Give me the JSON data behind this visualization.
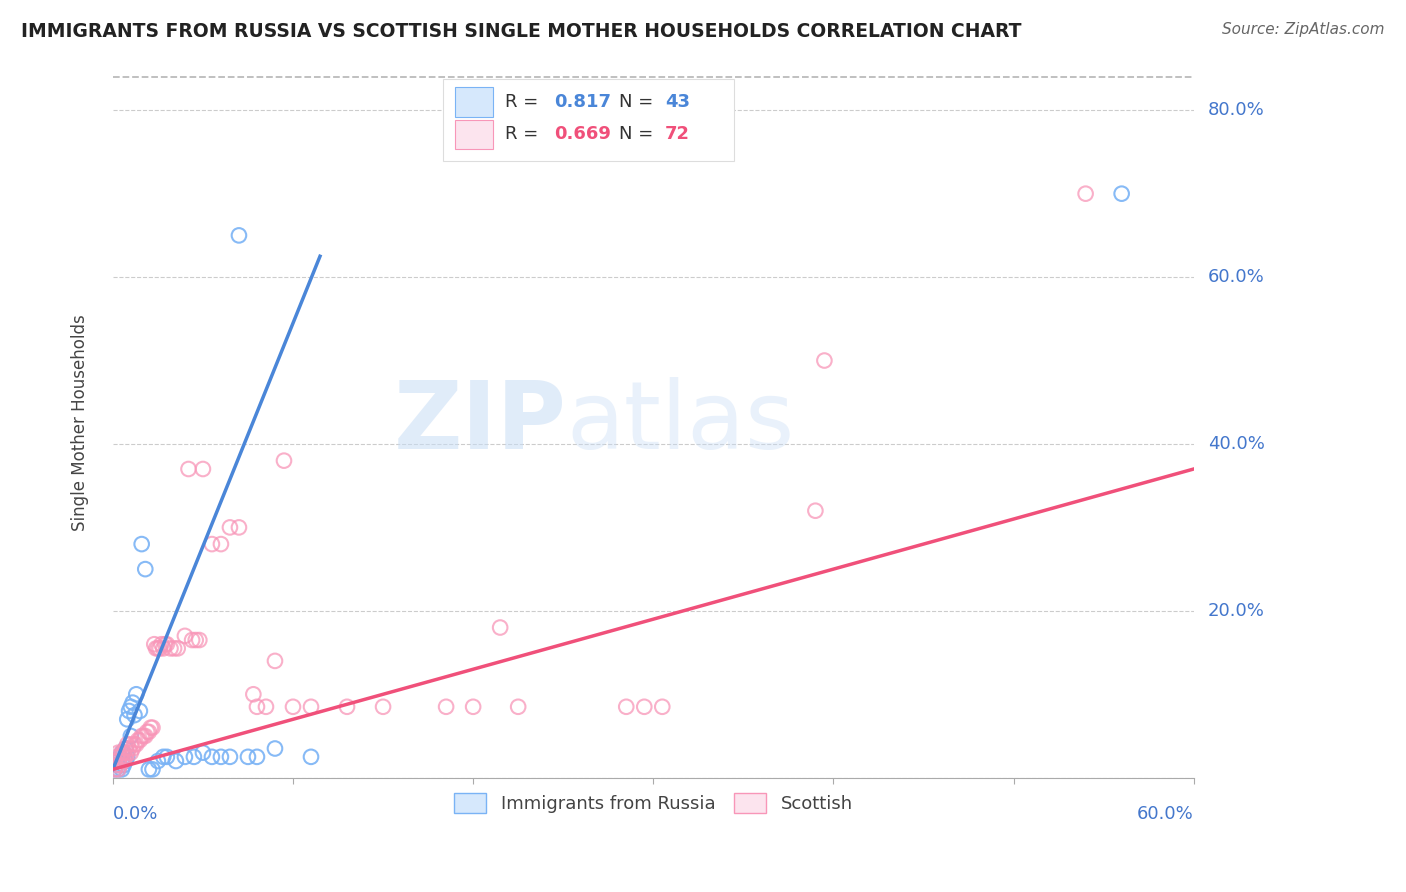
{
  "title": "IMMIGRANTS FROM RUSSIA VS SCOTTISH SINGLE MOTHER HOUSEHOLDS CORRELATION CHART",
  "source": "Source: ZipAtlas.com",
  "ylabel": "Single Mother Households",
  "xlim": [
    0.0,
    0.6
  ],
  "ylim": [
    0.0,
    0.85
  ],
  "yticks": [
    0.0,
    0.2,
    0.4,
    0.6,
    0.8
  ],
  "ytick_labels": [
    "",
    "20.0%",
    "40.0%",
    "60.0%",
    "80.0%"
  ],
  "grid_color": "#cccccc",
  "background_color": "#ffffff",
  "watermark_zip": "ZIP",
  "watermark_atlas": "atlas",
  "legend_r1": "R = 0.817",
  "legend_n1": "N = 43",
  "legend_r2": "R = 0.669",
  "legend_n2": "N = 72",
  "blue_color": "#7ab3f5",
  "pink_color": "#f896b8",
  "blue_fill_color": "#d6e8fc",
  "pink_fill_color": "#fce4ee",
  "blue_line_color": "#4a86d8",
  "pink_line_color": "#f0507a",
  "dashed_line_color": "#bbbbbb",
  "tick_label_color": "#4477cc",
  "blue_scatter": [
    [
      0.001,
      0.01
    ],
    [
      0.002,
      0.015
    ],
    [
      0.002,
      0.02
    ],
    [
      0.003,
      0.01
    ],
    [
      0.003,
      0.02
    ],
    [
      0.004,
      0.015
    ],
    [
      0.004,
      0.025
    ],
    [
      0.005,
      0.01
    ],
    [
      0.005,
      0.02
    ],
    [
      0.005,
      0.03
    ],
    [
      0.006,
      0.015
    ],
    [
      0.006,
      0.03
    ],
    [
      0.007,
      0.02
    ],
    [
      0.007,
      0.035
    ],
    [
      0.008,
      0.025
    ],
    [
      0.008,
      0.07
    ],
    [
      0.009,
      0.08
    ],
    [
      0.01,
      0.05
    ],
    [
      0.01,
      0.085
    ],
    [
      0.011,
      0.09
    ],
    [
      0.012,
      0.075
    ],
    [
      0.013,
      0.1
    ],
    [
      0.015,
      0.08
    ],
    [
      0.016,
      0.28
    ],
    [
      0.018,
      0.25
    ],
    [
      0.02,
      0.01
    ],
    [
      0.022,
      0.01
    ],
    [
      0.025,
      0.02
    ],
    [
      0.028,
      0.025
    ],
    [
      0.03,
      0.025
    ],
    [
      0.035,
      0.02
    ],
    [
      0.04,
      0.025
    ],
    [
      0.045,
      0.025
    ],
    [
      0.05,
      0.03
    ],
    [
      0.055,
      0.025
    ],
    [
      0.06,
      0.025
    ],
    [
      0.065,
      0.025
    ],
    [
      0.07,
      0.65
    ],
    [
      0.075,
      0.025
    ],
    [
      0.08,
      0.025
    ],
    [
      0.09,
      0.035
    ],
    [
      0.11,
      0.025
    ],
    [
      0.56,
      0.7
    ]
  ],
  "pink_scatter": [
    [
      0.001,
      0.01
    ],
    [
      0.001,
      0.02
    ],
    [
      0.002,
      0.015
    ],
    [
      0.002,
      0.025
    ],
    [
      0.003,
      0.01
    ],
    [
      0.003,
      0.02
    ],
    [
      0.003,
      0.03
    ],
    [
      0.004,
      0.015
    ],
    [
      0.004,
      0.025
    ],
    [
      0.005,
      0.02
    ],
    [
      0.005,
      0.03
    ],
    [
      0.006,
      0.02
    ],
    [
      0.006,
      0.03
    ],
    [
      0.007,
      0.025
    ],
    [
      0.007,
      0.035
    ],
    [
      0.008,
      0.03
    ],
    [
      0.008,
      0.04
    ],
    [
      0.009,
      0.035
    ],
    [
      0.01,
      0.03
    ],
    [
      0.01,
      0.04
    ],
    [
      0.011,
      0.035
    ],
    [
      0.012,
      0.04
    ],
    [
      0.013,
      0.04
    ],
    [
      0.014,
      0.045
    ],
    [
      0.015,
      0.045
    ],
    [
      0.016,
      0.05
    ],
    [
      0.017,
      0.05
    ],
    [
      0.018,
      0.05
    ],
    [
      0.019,
      0.055
    ],
    [
      0.02,
      0.055
    ],
    [
      0.021,
      0.06
    ],
    [
      0.022,
      0.06
    ],
    [
      0.023,
      0.16
    ],
    [
      0.024,
      0.155
    ],
    [
      0.025,
      0.155
    ],
    [
      0.026,
      0.155
    ],
    [
      0.027,
      0.16
    ],
    [
      0.028,
      0.155
    ],
    [
      0.029,
      0.16
    ],
    [
      0.03,
      0.16
    ],
    [
      0.032,
      0.155
    ],
    [
      0.034,
      0.155
    ],
    [
      0.036,
      0.155
    ],
    [
      0.04,
      0.17
    ],
    [
      0.042,
      0.37
    ],
    [
      0.044,
      0.165
    ],
    [
      0.046,
      0.165
    ],
    [
      0.048,
      0.165
    ],
    [
      0.05,
      0.37
    ],
    [
      0.055,
      0.28
    ],
    [
      0.06,
      0.28
    ],
    [
      0.065,
      0.3
    ],
    [
      0.07,
      0.3
    ],
    [
      0.078,
      0.1
    ],
    [
      0.08,
      0.085
    ],
    [
      0.085,
      0.085
    ],
    [
      0.09,
      0.14
    ],
    [
      0.095,
      0.38
    ],
    [
      0.1,
      0.085
    ],
    [
      0.11,
      0.085
    ],
    [
      0.13,
      0.085
    ],
    [
      0.15,
      0.085
    ],
    [
      0.185,
      0.085
    ],
    [
      0.2,
      0.085
    ],
    [
      0.215,
      0.18
    ],
    [
      0.225,
      0.085
    ],
    [
      0.285,
      0.085
    ],
    [
      0.295,
      0.085
    ],
    [
      0.305,
      0.085
    ],
    [
      0.39,
      0.32
    ],
    [
      0.395,
      0.5
    ],
    [
      0.54,
      0.7
    ]
  ],
  "blue_line_x": [
    0.0,
    0.115
  ],
  "blue_line_y": [
    0.01,
    0.625
  ],
  "pink_line_x": [
    0.0,
    0.6
  ],
  "pink_line_y": [
    0.01,
    0.37
  ],
  "dashed_line_x": [
    0.0,
    0.6
  ],
  "dashed_line_y": [
    0.84,
    0.84
  ]
}
